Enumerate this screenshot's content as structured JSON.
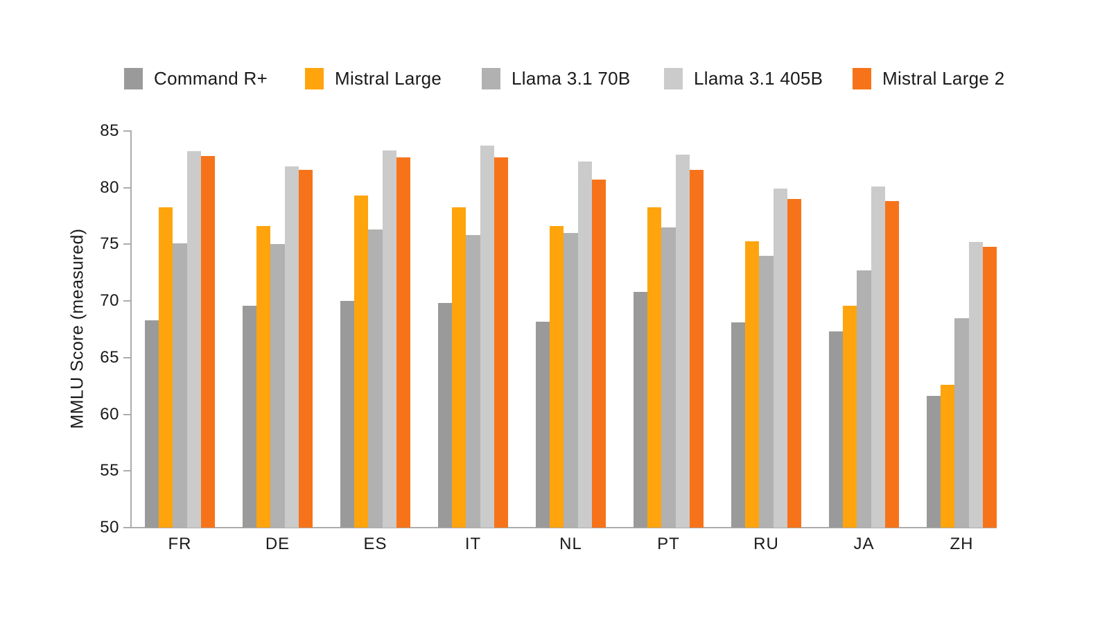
{
  "colors": {
    "background": "#FFFFFF",
    "text": "#1A1A1A",
    "axis": "#ACACAC"
  },
  "chart_data": {
    "type": "bar",
    "title": "",
    "xlabel": "",
    "ylabel": "MMLU Score (measured)",
    "ylim": [
      50,
      85
    ],
    "ytick_step": 5,
    "grid": false,
    "legend_position": "top",
    "categories": [
      "FR",
      "DE",
      "ES",
      "IT",
      "NL",
      "PT",
      "RU",
      "JA",
      "ZH"
    ],
    "series": [
      {
        "name": "Command R+",
        "color": "#9A9A9A",
        "values": [
          68.3,
          69.6,
          70.0,
          69.8,
          68.2,
          70.8,
          68.1,
          67.3,
          61.6
        ]
      },
      {
        "name": "Mistral Large",
        "color": "#FFA40D",
        "values": [
          78.3,
          76.6,
          79.3,
          78.3,
          76.6,
          78.3,
          75.3,
          69.6,
          62.6
        ]
      },
      {
        "name": "Llama 3.1 70B",
        "color": "#B1B1B1",
        "values": [
          75.1,
          75.0,
          76.3,
          75.8,
          76.0,
          76.5,
          74.0,
          72.7,
          68.5
        ]
      },
      {
        "name": "Llama 3.1 405B",
        "color": "#CBCBCB",
        "values": [
          83.2,
          81.9,
          83.3,
          83.7,
          82.3,
          82.9,
          79.9,
          80.1,
          75.2
        ]
      },
      {
        "name": "Mistral Large 2",
        "color": "#F7731A",
        "values": [
          82.8,
          81.6,
          82.7,
          82.7,
          80.7,
          81.6,
          79.0,
          78.8,
          74.8
        ]
      }
    ]
  }
}
